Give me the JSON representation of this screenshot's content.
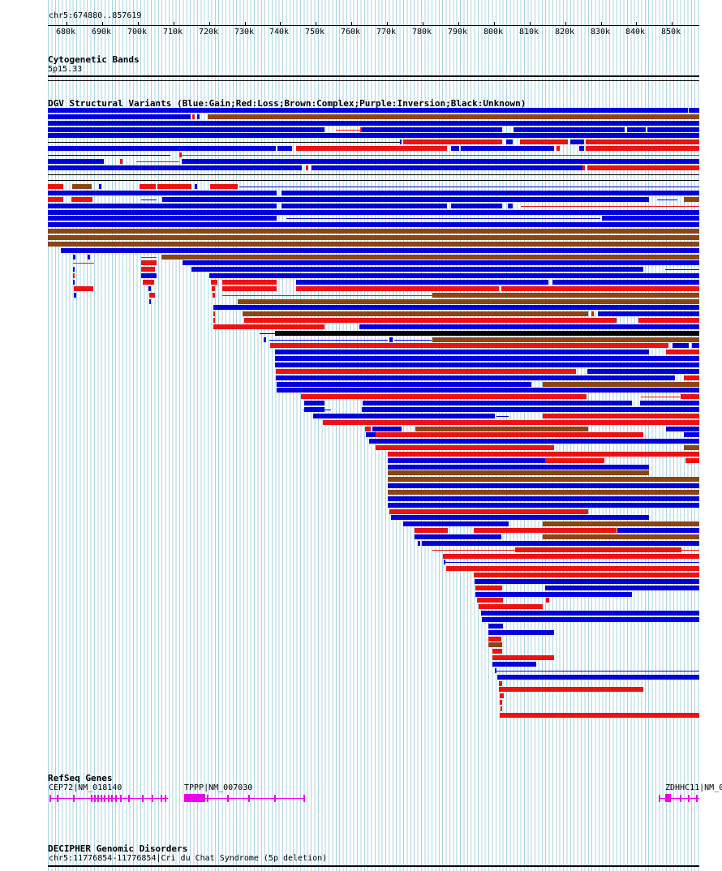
{
  "header": {
    "location": "chr5:674880..857619"
  },
  "ruler": {
    "ticks": [
      "680k",
      "690k",
      "700k",
      "710k",
      "720k",
      "730k",
      "740k",
      "750k",
      "760k",
      "770k",
      "780k",
      "790k",
      "800k",
      "810k",
      "820k",
      "830k",
      "840k",
      "850k"
    ]
  },
  "cytobands": {
    "title": "Cytogenetic Bands",
    "band": "5p15.33"
  },
  "dgv": {
    "title": "DGV Structural Variants (Blue:Gain;Red:Loss;Brown:Complex;Purple:Inversion;Black:Unknown)",
    "colors": {
      "gain": "#0000dd",
      "loss": "#ee1111",
      "complex": "#8b4513",
      "inversion": "#800080",
      "unknown": "#000000"
    },
    "variant_count": 104
  },
  "refseq": {
    "title": "RefSeq Genes",
    "genes": [
      {
        "label": "CEP72|NM_018140"
      },
      {
        "label": "TPPP|NM_007030"
      },
      {
        "label": "ZDHHC11|NM_0"
      }
    ],
    "color": "#ee00ee"
  },
  "decipher": {
    "title": "DECIPHER Genomic Disorders",
    "entry": "chr5:11776854-11776854|Cri du Chat Syndrome (5p deletion)"
  }
}
